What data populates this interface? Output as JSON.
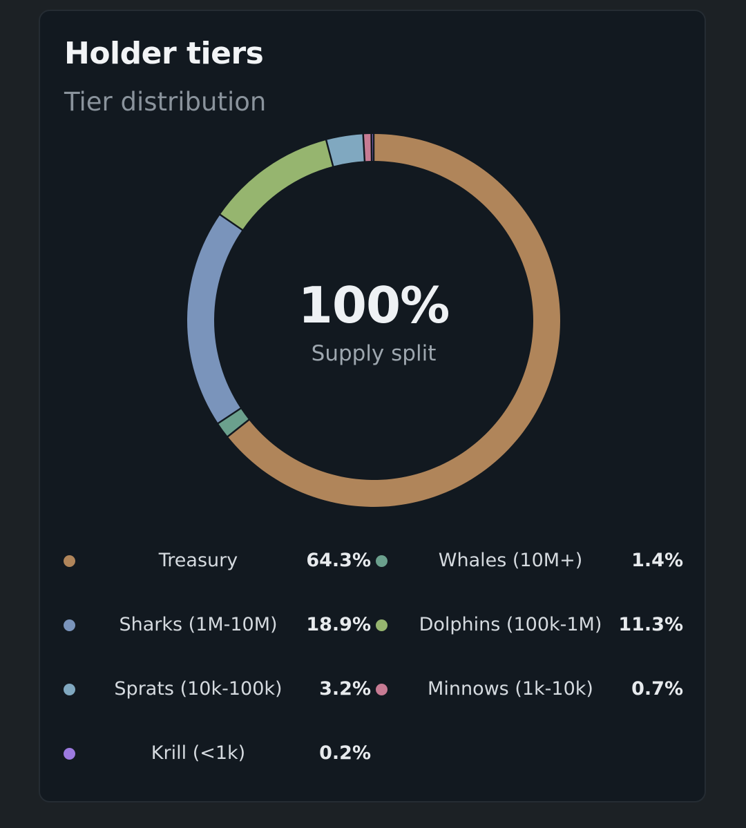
{
  "card": {
    "title": "Holder tiers",
    "subtitle": "Tier distribution",
    "center_value": "100%",
    "center_label": "Supply split"
  },
  "chart_data": {
    "type": "pie",
    "style": "donut",
    "title": "Holder tiers",
    "subtitle": "Tier distribution",
    "center_text": "100%",
    "center_subtext": "Supply split",
    "slices": [
      {
        "label": "Treasury",
        "value": 64.3,
        "display": "64.3%",
        "color": "#b0855a"
      },
      {
        "label": "Whales (10M+)",
        "value": 1.4,
        "display": "1.4%",
        "color": "#6ba08d"
      },
      {
        "label": "Sharks (1M-10M)",
        "value": 18.9,
        "display": "18.9%",
        "color": "#7a94bb"
      },
      {
        "label": "Dolphins (100k-1M)",
        "value": 11.3,
        "display": "11.3%",
        "color": "#96b56f"
      },
      {
        "label": "Sprats (10k-100k)",
        "value": 3.2,
        "display": "3.2%",
        "color": "#80a8c0"
      },
      {
        "label": "Minnows (1k-10k)",
        "value": 0.7,
        "display": "0.7%",
        "color": "#c77b93"
      },
      {
        "label": "Krill (<1k)",
        "value": 0.2,
        "display": "0.2%",
        "color": "#9c7ae0"
      }
    ],
    "legend_position": "bottom"
  },
  "colors": {
    "background": "#1c2125",
    "card": "#121920",
    "segment_gap": "#121920"
  }
}
